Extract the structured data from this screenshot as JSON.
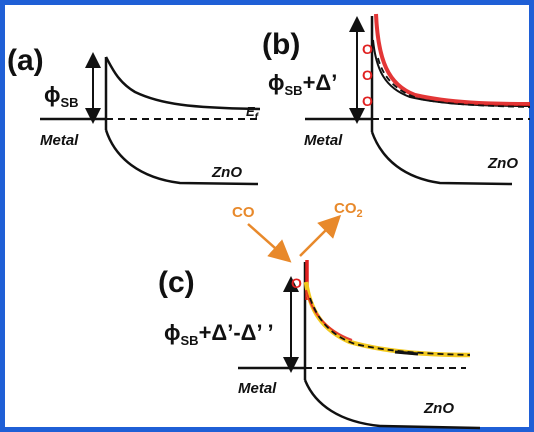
{
  "panels": {
    "a": {
      "label": "(a)",
      "phi": "ϕ",
      "phi_sub": "SB",
      "ef": "E",
      "ef_sub": "f",
      "metal": "Metal",
      "zno": "ZnO"
    },
    "b": {
      "label": "(b)",
      "phi": "ϕ",
      "phi_sub": "SB",
      "phi_rest": "+Δ’",
      "metal": "Metal",
      "zno": "ZnO",
      "o_marks": [
        "O",
        "O",
        "O"
      ]
    },
    "c": {
      "label": "(c)",
      "phi": "ϕ",
      "phi_sub": "SB",
      "phi_rest": "+Δ’-Δ’ ’",
      "metal": "Metal",
      "zno": "ZnO",
      "o_marks": [
        "O"
      ]
    }
  },
  "gases": {
    "co": "CO",
    "co2": "CO",
    "co2_sub": "2"
  },
  "colors": {
    "border": "#1f5fd6",
    "oxygen": "#e02020",
    "gas_arrow": "#e8892b",
    "band_red": "#e02020",
    "band_yellow": "#f2c81e"
  }
}
